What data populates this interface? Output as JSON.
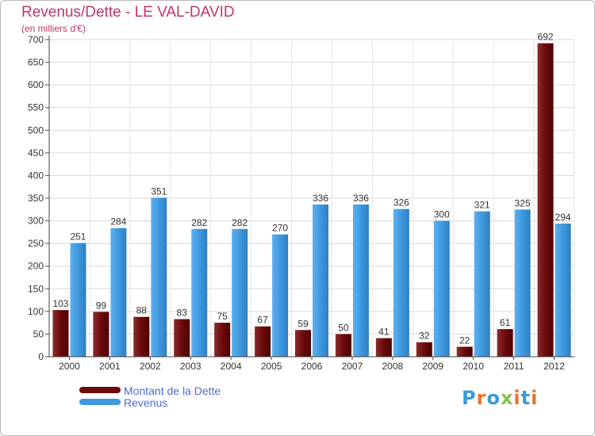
{
  "header": {
    "title": "Revenus/Dette - LE VAL-DAVID",
    "subtitle": "(en milliers d'€)"
  },
  "legend": {
    "items": [
      {
        "label": "Montant de la Dette",
        "color": "#6b0a0a"
      },
      {
        "label": "Revenus",
        "color": "#3f99df"
      }
    ]
  },
  "logo": {
    "text": "Proxiti",
    "letters": [
      "P",
      "r",
      "o",
      "x",
      "i",
      "t",
      "i"
    ],
    "colors": [
      "#3b9ad9",
      "#e8742c",
      "#3b9ad9",
      "#8bc34a",
      "#e8742c",
      "#3b9ad9",
      "#e8742c"
    ]
  },
  "chart_data": {
    "type": "bar",
    "categories": [
      "2000",
      "2001",
      "2002",
      "2003",
      "2004",
      "2005",
      "2006",
      "2007",
      "2008",
      "2009",
      "2010",
      "2011",
      "2012"
    ],
    "series": [
      {
        "name": "Montant de la Dette",
        "color": "#6b0a0a",
        "values": [
          103,
          99,
          88,
          83,
          75,
          67,
          59,
          50,
          41,
          32,
          22,
          61,
          692
        ]
      },
      {
        "name": "Revenus",
        "color": "#3f99df",
        "values": [
          251,
          284,
          351,
          282,
          282,
          270,
          336,
          336,
          326,
          300,
          321,
          325,
          294
        ]
      }
    ],
    "ylim": [
      0,
      700
    ],
    "yticks": [
      0,
      50,
      100,
      150,
      200,
      250,
      300,
      350,
      400,
      450,
      500,
      550,
      600,
      650,
      700
    ],
    "grid": true
  }
}
